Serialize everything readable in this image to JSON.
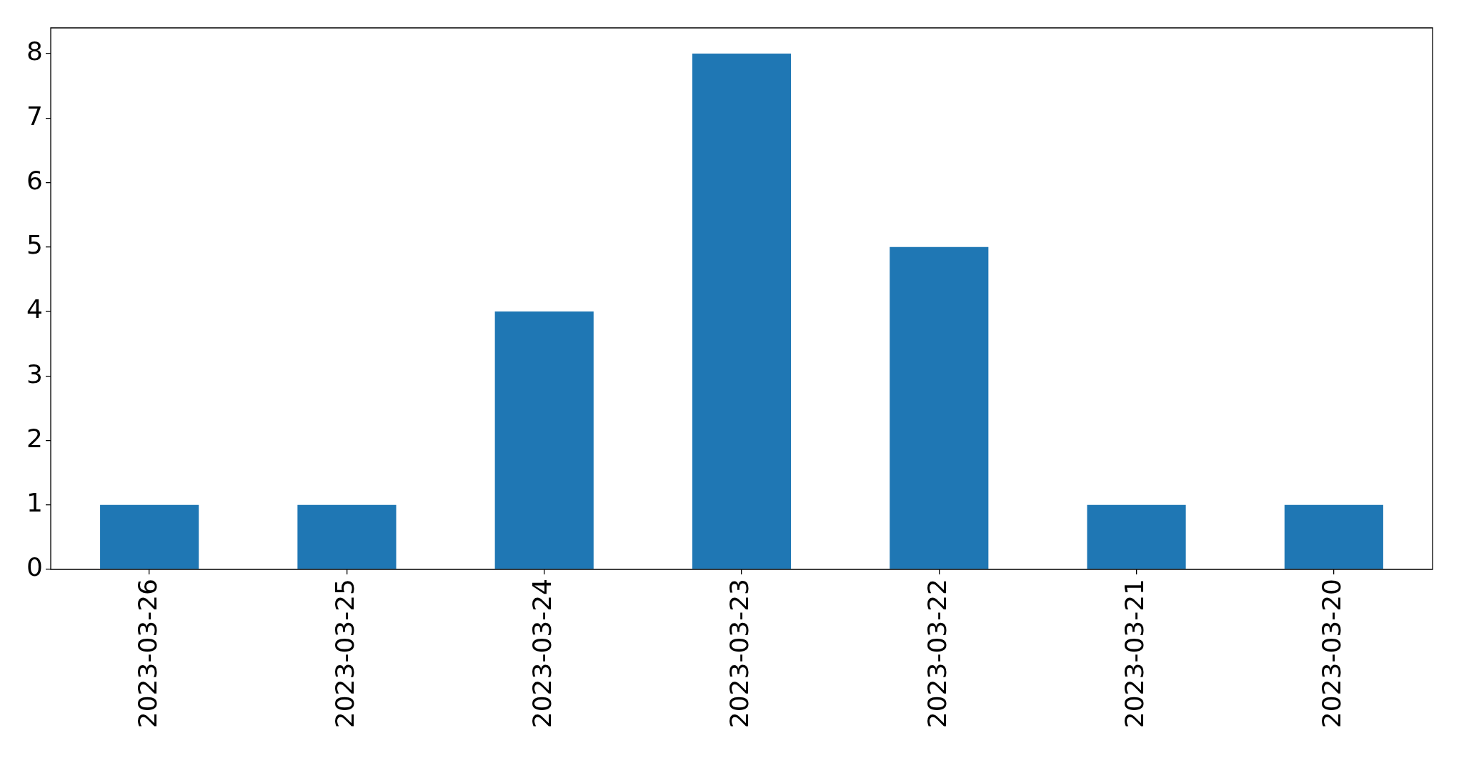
{
  "chart_data": {
    "type": "bar",
    "categories": [
      "2023-03-26",
      "2023-03-25",
      "2023-03-24",
      "2023-03-23",
      "2023-03-22",
      "2023-03-21",
      "2023-03-20"
    ],
    "values": [
      1,
      1,
      4,
      8,
      5,
      1,
      1
    ],
    "color": "#1f77b4",
    "ylim": [
      0,
      8.4
    ],
    "yticks": [
      0,
      1,
      2,
      3,
      4,
      5,
      6,
      7,
      8
    ]
  }
}
